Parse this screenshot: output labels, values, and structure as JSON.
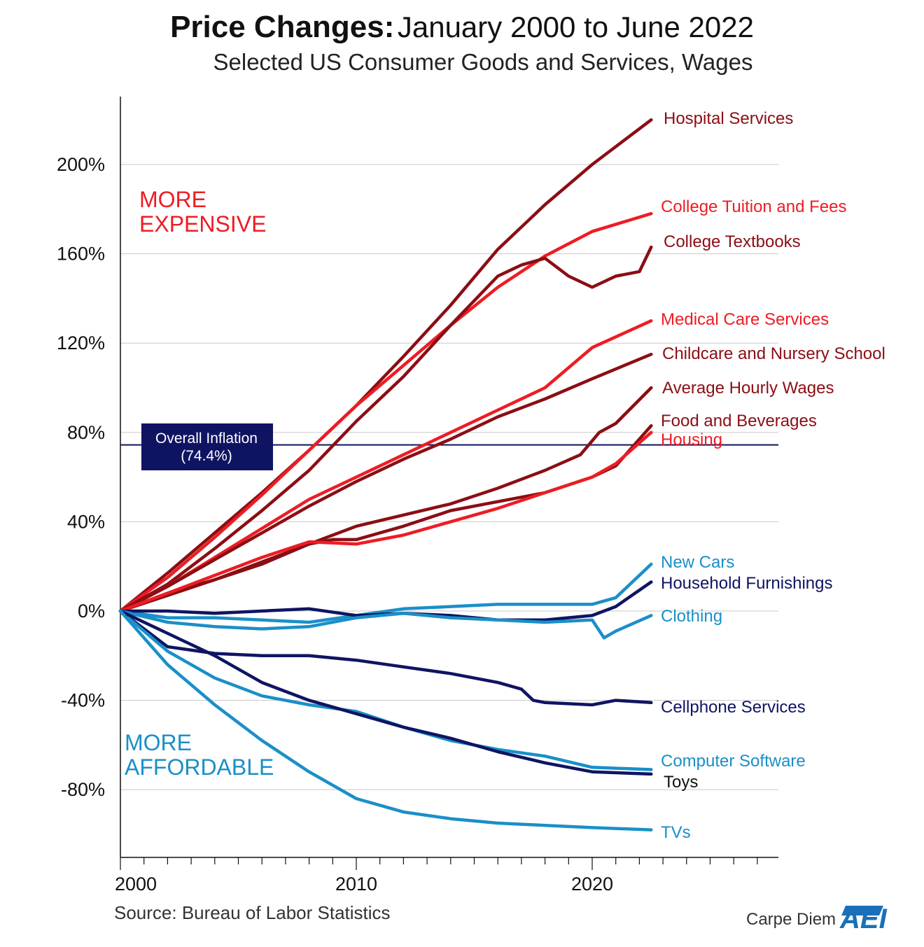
{
  "title_bold": "Price Changes:",
  "title_rest": "January 2000 to June 2022",
  "subtitle": "Selected US Consumer Goods and Services, Wages",
  "source": "Source: Bureau of Labor Statistics",
  "brand": "Carpe Diem",
  "logo_text": "AEI",
  "annotations": {
    "more_expensive": [
      "MORE",
      "EXPENSIVE"
    ],
    "more_affordable": [
      "MORE",
      "AFFORDABLE"
    ],
    "overall_inflation": [
      "Overall Inflation",
      "(74.4%)"
    ]
  },
  "colors": {
    "dark_red": "#8b0e14",
    "red": "#ee1c24",
    "navy": "#0f1462",
    "light_blue": "#1a8fc8",
    "grid": "#c8c8c8"
  },
  "chart_data": {
    "type": "line",
    "title": "Price Changes: January 2000 to June 2022",
    "subtitle": "Selected US Consumer Goods and Services, Wages",
    "xlabel": "",
    "ylabel": "",
    "x_range": [
      2000,
      2027.5
    ],
    "y_range": [
      -110,
      230
    ],
    "y_ticks": [
      -80,
      -40,
      0,
      40,
      80,
      120,
      160,
      200
    ],
    "y_tick_labels": [
      "-80%",
      "-40%",
      "0%",
      "40%",
      "80%",
      "120%",
      "160%",
      "200%"
    ],
    "x_tick_labels": [
      {
        "year": 2000,
        "label": "2000"
      },
      {
        "year": 2010,
        "label": "2010"
      },
      {
        "year": 2020,
        "label": "2020"
      }
    ],
    "reference_line": {
      "label": "Overall Inflation (74.4%)",
      "value": 74.4
    },
    "series": [
      {
        "name": "Hospital Services",
        "color": "#8b0e14",
        "x": [
          2000,
          2002,
          2004,
          2006,
          2008,
          2010,
          2012,
          2014,
          2016,
          2018,
          2020,
          2022.5
        ],
        "values": [
          0,
          17,
          35,
          53,
          72,
          92,
          114,
          137,
          162,
          182,
          200,
          220
        ]
      },
      {
        "name": "College Tuition and Fees",
        "color": "#ee1c24",
        "x": [
          2000,
          2002,
          2004,
          2006,
          2008,
          2010,
          2012,
          2014,
          2016,
          2018,
          2020,
          2022.5
        ],
        "values": [
          0,
          15,
          33,
          52,
          72,
          92,
          110,
          128,
          145,
          159,
          170,
          178
        ]
      },
      {
        "name": "College Textbooks",
        "color": "#8b0e14",
        "x": [
          2000,
          2002,
          2004,
          2006,
          2008,
          2010,
          2012,
          2014,
          2016,
          2017,
          2018,
          2019,
          2020,
          2021,
          2022,
          2022.5
        ],
        "values": [
          0,
          12,
          28,
          45,
          63,
          85,
          105,
          128,
          150,
          155,
          158,
          150,
          145,
          150,
          152,
          163
        ]
      },
      {
        "name": "Medical Care Services",
        "color": "#ee1c24",
        "x": [
          2000,
          2002,
          2004,
          2006,
          2008,
          2010,
          2012,
          2014,
          2016,
          2018,
          2020,
          2022.5
        ],
        "values": [
          0,
          11,
          24,
          37,
          50,
          60,
          70,
          80,
          90,
          100,
          118,
          130
        ]
      },
      {
        "name": "Childcare and Nursery School",
        "color": "#8b0e14",
        "x": [
          2000,
          2002,
          2004,
          2006,
          2008,
          2010,
          2012,
          2014,
          2016,
          2018,
          2020,
          2022.5
        ],
        "values": [
          0,
          11,
          23,
          35,
          47,
          58,
          68,
          77,
          87,
          95,
          104,
          115
        ]
      },
      {
        "name": "Average Hourly Wages",
        "color": "#8b0e14",
        "x": [
          2000,
          2002,
          2004,
          2006,
          2008,
          2010,
          2012,
          2014,
          2016,
          2018,
          2019.5,
          2020.3,
          2021,
          2022.5
        ],
        "values": [
          0,
          7,
          14,
          22,
          30,
          38,
          43,
          48,
          55,
          63,
          70,
          80,
          84,
          100
        ]
      },
      {
        "name": "Food and Beverages",
        "color": "#8b0e14",
        "x": [
          2000,
          2002,
          2004,
          2006,
          2008,
          2009,
          2010,
          2012,
          2014,
          2016,
          2018,
          2020,
          2021,
          2022.5
        ],
        "values": [
          0,
          8,
          14,
          21,
          30,
          32,
          32,
          38,
          45,
          49,
          53,
          60,
          65,
          83
        ]
      },
      {
        "name": "Housing",
        "color": "#ee1c24",
        "x": [
          2000,
          2002,
          2004,
          2006,
          2008,
          2010,
          2012,
          2014,
          2016,
          2018,
          2020,
          2021,
          2022.5
        ],
        "values": [
          0,
          8,
          16,
          24,
          31,
          30,
          34,
          40,
          46,
          53,
          60,
          66,
          80
        ]
      },
      {
        "name": "New Cars",
        "color": "#1a8fc8",
        "x": [
          2000,
          2002,
          2004,
          2006,
          2008,
          2010,
          2012,
          2014,
          2016,
          2018,
          2020,
          2021,
          2022.5
        ],
        "values": [
          0,
          -3,
          -3,
          -4,
          -5,
          -2,
          1,
          2,
          3,
          3,
          3,
          6,
          21
        ]
      },
      {
        "name": "Household Furnishings",
        "color": "#0f1462",
        "x": [
          2000,
          2002,
          2004,
          2006,
          2008,
          2010,
          2012,
          2014,
          2016,
          2018,
          2020,
          2021,
          2022.5
        ],
        "values": [
          0,
          0,
          -1,
          0,
          1,
          -2,
          -1,
          -2,
          -4,
          -4,
          -2,
          2,
          13
        ]
      },
      {
        "name": "Clothing",
        "color": "#1a8fc8",
        "x": [
          2000,
          2002,
          2004,
          2006,
          2008,
          2010,
          2012,
          2014,
          2016,
          2018,
          2020,
          2020.5,
          2021,
          2022.5
        ],
        "values": [
          0,
          -5,
          -7,
          -8,
          -7,
          -3,
          -1,
          -3,
          -4,
          -5,
          -4,
          -12,
          -9,
          -2
        ]
      },
      {
        "name": "Cellphone Services",
        "color": "#0f1462",
        "x": [
          2000,
          2002,
          2004,
          2006,
          2008,
          2010,
          2012,
          2014,
          2016,
          2017,
          2017.5,
          2018,
          2020,
          2021,
          2022.5
        ],
        "values": [
          0,
          -16,
          -19,
          -20,
          -20,
          -22,
          -25,
          -28,
          -32,
          -35,
          -40,
          -41,
          -42,
          -40,
          -41
        ]
      },
      {
        "name": "Computer Software",
        "color": "#1a8fc8",
        "x": [
          2000,
          2002,
          2004,
          2006,
          2008,
          2010,
          2012,
          2014,
          2016,
          2018,
          2020,
          2022.5
        ],
        "values": [
          0,
          -18,
          -30,
          -38,
          -42,
          -45,
          -52,
          -58,
          -62,
          -65,
          -70,
          -71
        ]
      },
      {
        "name": "Toys",
        "color": "#0f1462",
        "x": [
          2000,
          2002,
          2004,
          2006,
          2008,
          2010,
          2012,
          2014,
          2016,
          2018,
          2020,
          2022.5
        ],
        "values": [
          0,
          -10,
          -20,
          -32,
          -40,
          -46,
          -52,
          -57,
          -63,
          -68,
          -72,
          -73
        ]
      },
      {
        "name": "TVs",
        "color": "#1a8fc8",
        "x": [
          2000,
          2002,
          2004,
          2006,
          2008,
          2010,
          2012,
          2014,
          2016,
          2018,
          2020,
          2022.5
        ],
        "values": [
          0,
          -24,
          -42,
          -58,
          -72,
          -84,
          -90,
          -93,
          -95,
          -96,
          -97,
          -98
        ]
      }
    ]
  }
}
